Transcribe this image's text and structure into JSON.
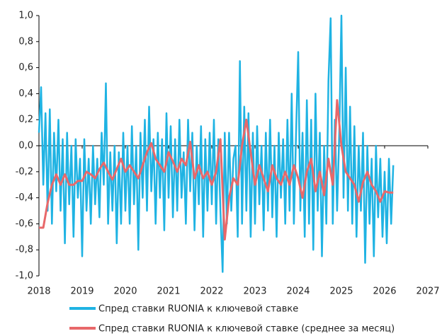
{
  "chart_data": {
    "type": "line",
    "xlim": [
      2018,
      2027
    ],
    "xticks": [
      2018,
      2019,
      2020,
      2021,
      2022,
      2023,
      2024,
      2025,
      2026,
      2027
    ],
    "ylim": [
      -1.0,
      1.0
    ],
    "yticks": [
      {
        "value": 1.0,
        "label": "1,0"
      },
      {
        "value": 0.8,
        "label": "0,8"
      },
      {
        "value": 0.6,
        "label": "0,6"
      },
      {
        "value": 0.4,
        "label": "0,4"
      },
      {
        "value": 0.2,
        "label": "0,2"
      },
      {
        "value": 0.0,
        "label": "0,0"
      },
      {
        "value": -0.2,
        "label": "-0,2"
      },
      {
        "value": -0.4,
        "label": "-0,4"
      },
      {
        "value": -0.6,
        "label": "-0,6"
      },
      {
        "value": -0.8,
        "label": "-0,8"
      },
      {
        "value": -1.0,
        "label": "-1,0"
      }
    ],
    "series": [
      {
        "name": "Спред ставки RUONIA к ключевой ставке",
        "color": "#1fb3e3",
        "x": [
          2018.0,
          2018.05,
          2018.1,
          2018.15,
          2018.2,
          2018.25,
          2018.3,
          2018.35,
          2018.4,
          2018.45,
          2018.5,
          2018.55,
          2018.6,
          2018.65,
          2018.7,
          2018.75,
          2018.8,
          2018.85,
          2018.9,
          2018.95,
          2019.0,
          2019.05,
          2019.1,
          2019.15,
          2019.2,
          2019.25,
          2019.3,
          2019.35,
          2019.4,
          2019.45,
          2019.5,
          2019.55,
          2019.6,
          2019.65,
          2019.7,
          2019.75,
          2019.8,
          2019.85,
          2019.9,
          2019.95,
          2020.0,
          2020.05,
          2020.1,
          2020.15,
          2020.2,
          2020.25,
          2020.3,
          2020.35,
          2020.4,
          2020.45,
          2020.5,
          2020.55,
          2020.6,
          2020.65,
          2020.7,
          2020.75,
          2020.8,
          2020.85,
          2020.9,
          2020.95,
          2021.0,
          2021.05,
          2021.1,
          2021.15,
          2021.2,
          2021.25,
          2021.3,
          2021.35,
          2021.4,
          2021.45,
          2021.5,
          2021.55,
          2021.6,
          2021.65,
          2021.7,
          2021.75,
          2021.8,
          2021.85,
          2021.9,
          2021.95,
          2022.0,
          2022.05,
          2022.1,
          2022.15,
          2022.2,
          2022.25,
          2022.3,
          2022.35,
          2022.4,
          2022.45,
          2022.5,
          2022.55,
          2022.6,
          2022.65,
          2022.7,
          2022.75,
          2022.8,
          2022.85,
          2022.9,
          2022.95,
          2023.0,
          2023.05,
          2023.1,
          2023.15,
          2023.2,
          2023.25,
          2023.3,
          2023.35,
          2023.4,
          2023.45,
          2023.5,
          2023.55,
          2023.6,
          2023.65,
          2023.7,
          2023.75,
          2023.8,
          2023.85,
          2023.9,
          2023.95,
          2024.0,
          2024.05,
          2024.1,
          2024.15,
          2024.2,
          2024.25,
          2024.3,
          2024.35,
          2024.4,
          2024.45,
          2024.5,
          2024.55,
          2024.6,
          2024.65,
          2024.7,
          2024.75,
          2024.8,
          2024.85,
          2024.9,
          2024.95,
          2025.0,
          2025.05,
          2025.1,
          2025.15,
          2025.2,
          2025.25,
          2025.3,
          2025.35,
          2025.4,
          2025.45,
          2025.5,
          2025.55,
          2025.6,
          2025.65,
          2025.7,
          2025.75,
          2025.8,
          2025.85,
          2025.9,
          2025.95,
          2026.0,
          2026.05,
          2026.1,
          2026.15,
          2026.2
        ],
        "values": [
          0.1,
          0.45,
          -0.3,
          0.25,
          -0.5,
          0.28,
          -0.6,
          0.1,
          -0.35,
          0.2,
          -0.5,
          0.05,
          -0.75,
          0.1,
          -0.45,
          0.0,
          -0.7,
          0.05,
          -0.4,
          -0.1,
          -0.85,
          0.05,
          -0.5,
          -0.1,
          -0.6,
          0.0,
          -0.45,
          -0.1,
          -0.55,
          0.1,
          -0.3,
          0.48,
          -0.6,
          -0.05,
          -0.5,
          0.0,
          -0.75,
          -0.05,
          -0.6,
          0.1,
          -0.5,
          0.0,
          -0.6,
          0.15,
          -0.45,
          0.0,
          -0.8,
          0.1,
          -0.4,
          0.2,
          -0.5,
          0.3,
          -0.35,
          0.05,
          -0.6,
          0.1,
          -0.4,
          0.05,
          -0.65,
          0.25,
          -0.4,
          0.15,
          -0.55,
          0.05,
          -0.5,
          0.2,
          -0.4,
          -0.05,
          -0.6,
          0.2,
          -0.35,
          0.1,
          -0.65,
          0.0,
          -0.45,
          0.15,
          -0.7,
          0.05,
          -0.5,
          0.1,
          -0.45,
          0.2,
          -0.6,
          0.05,
          -0.5,
          -0.97,
          0.1,
          -0.6,
          0.1,
          -0.5,
          -0.1,
          0.0,
          -0.7,
          0.65,
          -0.6,
          0.3,
          -0.5,
          0.25,
          -0.7,
          0.1,
          -0.6,
          0.15,
          -0.45,
          0.0,
          -0.65,
          0.1,
          -0.5,
          0.2,
          -0.55,
          0.0,
          -0.7,
          0.1,
          -0.4,
          0.05,
          -0.6,
          0.2,
          -0.5,
          0.4,
          -0.6,
          0.1,
          0.72,
          -0.5,
          0.1,
          -0.7,
          0.35,
          -0.6,
          0.2,
          -0.8,
          0.4,
          -0.5,
          0.1,
          -0.85,
          0.0,
          -0.6,
          0.5,
          0.98,
          -0.6,
          0.2,
          -0.5,
          0.1,
          1.0,
          -0.4,
          0.6,
          -0.5,
          0.3,
          -0.6,
          0.15,
          -0.7,
          0.0,
          -0.5,
          0.1,
          -0.9,
          0.0,
          -0.6,
          -0.1,
          -0.85,
          0.0,
          -0.55,
          -0.1,
          -0.7,
          -0.2,
          -0.75,
          -0.1,
          -0.6,
          -0.15
        ]
      },
      {
        "name": "Спред ставки RUONIA к ключевой ставке (среднее за месяц)",
        "color": "#e8686a",
        "x": [
          2018.0,
          2018.1,
          2018.2,
          2018.3,
          2018.4,
          2018.5,
          2018.6,
          2018.7,
          2018.8,
          2018.9,
          2019.0,
          2019.1,
          2019.2,
          2019.3,
          2019.4,
          2019.5,
          2019.6,
          2019.7,
          2019.8,
          2019.9,
          2020.0,
          2020.1,
          2020.2,
          2020.3,
          2020.4,
          2020.5,
          2020.6,
          2020.7,
          2020.8,
          2020.9,
          2021.0,
          2021.1,
          2021.2,
          2021.3,
          2021.4,
          2021.5,
          2021.6,
          2021.7,
          2021.8,
          2021.9,
          2022.0,
          2022.1,
          2022.2,
          2022.3,
          2022.4,
          2022.5,
          2022.6,
          2022.7,
          2022.8,
          2022.9,
          2023.0,
          2023.1,
          2023.2,
          2023.3,
          2023.4,
          2023.5,
          2023.6,
          2023.7,
          2023.8,
          2023.9,
          2024.0,
          2024.1,
          2024.2,
          2024.3,
          2024.4,
          2024.5,
          2024.6,
          2024.7,
          2024.8,
          2024.9,
          2025.0,
          2025.1,
          2025.2,
          2025.3,
          2025.4,
          2025.5,
          2025.6,
          2025.7,
          2025.8,
          2025.9,
          2026.0,
          2026.1,
          2026.2
        ],
        "values": [
          -0.63,
          -0.63,
          -0.44,
          -0.3,
          -0.22,
          -0.3,
          -0.22,
          -0.3,
          -0.3,
          -0.27,
          -0.27,
          -0.2,
          -0.22,
          -0.25,
          -0.18,
          -0.13,
          -0.2,
          -0.26,
          -0.18,
          -0.1,
          -0.2,
          -0.15,
          -0.2,
          -0.25,
          -0.15,
          -0.05,
          0.02,
          -0.1,
          -0.15,
          -0.2,
          -0.05,
          -0.12,
          -0.2,
          -0.1,
          -0.15,
          0.03,
          -0.25,
          -0.15,
          -0.25,
          -0.2,
          -0.3,
          -0.2,
          0.05,
          -0.72,
          -0.4,
          -0.25,
          -0.3,
          0.0,
          0.2,
          -0.05,
          -0.3,
          -0.15,
          -0.25,
          -0.35,
          -0.15,
          -0.25,
          -0.3,
          -0.2,
          -0.3,
          -0.15,
          -0.25,
          -0.4,
          -0.2,
          -0.1,
          -0.35,
          -0.2,
          -0.38,
          -0.1,
          -0.3,
          0.35,
          0.0,
          -0.2,
          -0.25,
          -0.3,
          -0.43,
          -0.28,
          -0.2,
          -0.3,
          -0.35,
          -0.43,
          -0.35,
          -0.36,
          -0.36
        ]
      }
    ]
  }
}
